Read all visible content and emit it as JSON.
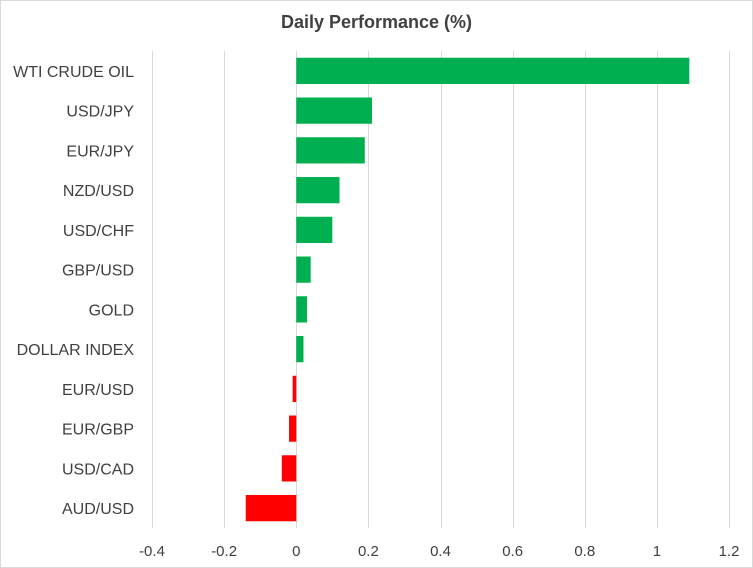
{
  "chart_data": {
    "type": "bar",
    "orientation": "horizontal",
    "title": "Daily Performance  (%)",
    "categories": [
      "WTI CRUDE OIL",
      "USD/JPY",
      "EUR/JPY",
      "NZD/USD",
      "USD/CHF",
      "GBP/USD",
      "GOLD",
      "DOLLAR INDEX",
      "EUR/USD",
      "EUR/GBP",
      "USD/CAD",
      "AUD/USD"
    ],
    "values": [
      1.09,
      0.21,
      0.19,
      0.12,
      0.1,
      0.04,
      0.03,
      0.02,
      -0.01,
      -0.02,
      -0.04,
      -0.14
    ],
    "xlim": [
      -0.4,
      1.2
    ],
    "xticks": [
      -0.4,
      -0.2,
      0,
      0.2,
      0.4,
      0.6,
      0.8,
      1,
      1.2
    ],
    "xlabel": "",
    "ylabel": "",
    "grid": true,
    "legend": "none",
    "colors": {
      "positive": "#00b050",
      "negative": "#ff0000"
    }
  }
}
